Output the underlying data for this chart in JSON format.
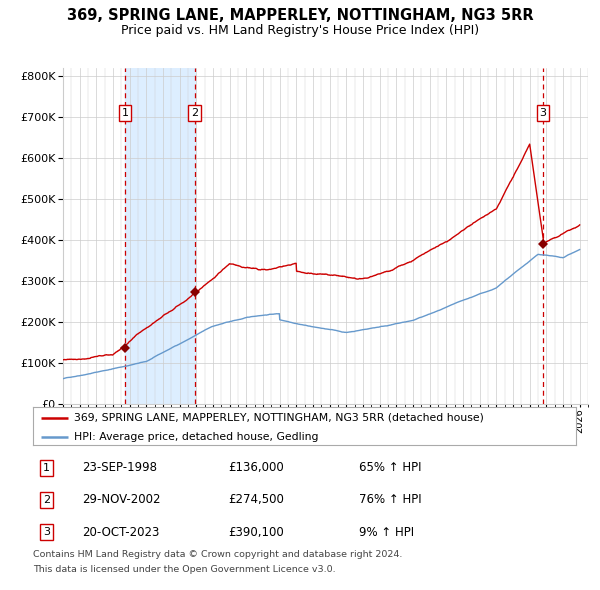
{
  "title": "369, SPRING LANE, MAPPERLEY, NOTTINGHAM, NG3 5RR",
  "subtitle": "Price paid vs. HM Land Registry's House Price Index (HPI)",
  "title_fontsize": 10.5,
  "subtitle_fontsize": 9,
  "ylim": [
    0,
    820000
  ],
  "yticks": [
    0,
    100000,
    200000,
    300000,
    400000,
    500000,
    600000,
    700000,
    800000
  ],
  "ytick_labels": [
    "£0",
    "£100K",
    "£200K",
    "£300K",
    "£400K",
    "£500K",
    "£600K",
    "£700K",
    "£800K"
  ],
  "xlim_start": 1995.0,
  "xlim_end": 2026.5,
  "hpi_color": "#6699cc",
  "price_color": "#cc0000",
  "marker_color": "#880000",
  "vline_color": "#cc0000",
  "shade_color": "#ddeeff",
  "background_color": "#ffffff",
  "grid_color": "#cccccc",
  "purchases": [
    {
      "label": "1",
      "date_num": 1998.73,
      "price": 136000,
      "date_str": "23-SEP-1998",
      "price_str": "£136,000",
      "hpi_str": "65% ↑ HPI"
    },
    {
      "label": "2",
      "date_num": 2002.91,
      "price": 274500,
      "date_str": "29-NOV-2002",
      "price_str": "£274,500",
      "hpi_str": "76% ↑ HPI"
    },
    {
      "label": "3",
      "date_num": 2023.8,
      "price": 390100,
      "date_str": "20-OCT-2023",
      "price_str": "£390,100",
      "hpi_str": "9% ↑ HPI"
    }
  ],
  "legend_line1": "369, SPRING LANE, MAPPERLEY, NOTTINGHAM, NG3 5RR (detached house)",
  "legend_line2": "HPI: Average price, detached house, Gedling",
  "footer1": "Contains HM Land Registry data © Crown copyright and database right 2024.",
  "footer2": "This data is licensed under the Open Government Licence v3.0.",
  "shade_x1": 1998.73,
  "shade_x2": 2002.91
}
